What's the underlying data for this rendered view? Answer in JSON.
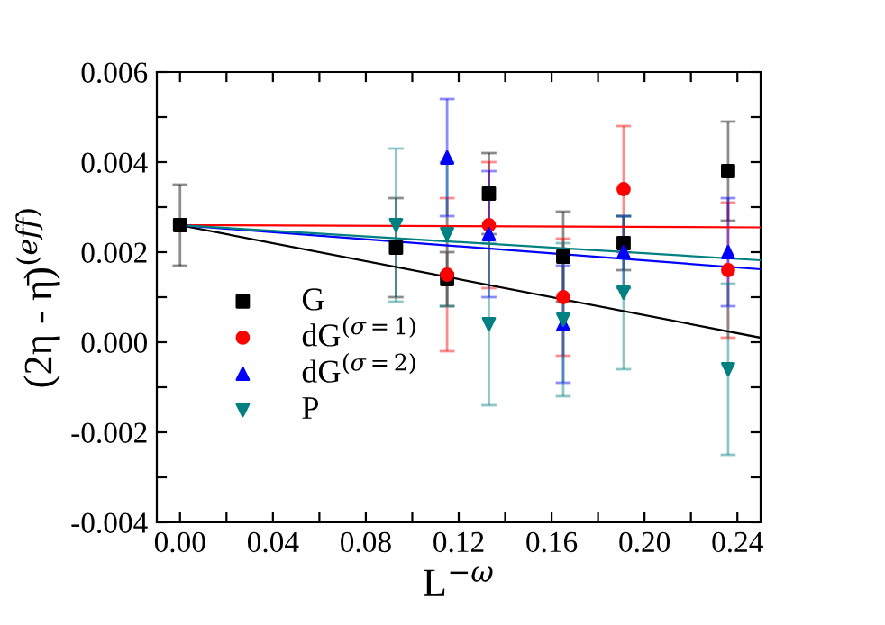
{
  "chart_data": {
    "type": "scatter",
    "xlabel": "L$^{−ω}$",
    "ylabel": "(2η - η̄)$^{(eff)}$",
    "xlim": [
      -0.01,
      0.25
    ],
    "ylim": [
      -0.004,
      0.006
    ],
    "xticks": [
      {
        "value": 0.0,
        "label": "0.00"
      },
      {
        "value": 0.02,
        "label": null
      },
      0.04,
      {
        "value": 0.06,
        "label": null
      },
      0.08,
      {
        "value": 0.1,
        "label": null
      },
      0.12,
      {
        "value": 0.14,
        "label": null
      },
      0.16,
      {
        "value": 0.18,
        "label": null
      },
      {
        "value": 0.2,
        "label": "0.20"
      },
      {
        "value": 0.22,
        "label": null
      },
      0.24
    ],
    "yticks": [
      {
        "value": -0.004,
        "label": "-0.004"
      },
      {
        "value": -0.003,
        "label": null
      },
      {
        "value": -0.002,
        "label": "-0.002"
      },
      {
        "value": -0.001,
        "label": null
      },
      {
        "value": 0.0,
        "label": "0.000"
      },
      {
        "value": 0.001,
        "label": null
      },
      {
        "value": 0.002,
        "label": "0.002"
      },
      {
        "value": 0.003,
        "label": null
      },
      {
        "value": 0.004,
        "label": "0.004"
      },
      {
        "value": 0.005,
        "label": null
      },
      {
        "value": 0.006,
        "label": "0.006"
      }
    ],
    "legend": "bottom left",
    "grid": false,
    "series": [
      {
        "name": "G",
        "color": "#000000",
        "marker": "square",
        "x": [
          0.0,
          0.093,
          0.115,
          0.133,
          0.165,
          0.191,
          0.236
        ],
        "values": [
          0.0026,
          0.0021,
          0.0014,
          0.0033,
          0.0019,
          0.0022,
          0.0038
        ],
        "errors": [
          0.0009,
          0.0011,
          0.0006,
          0.0009,
          0.001,
          0.0006,
          0.0011
        ]
      },
      {
        "name": "dG$^{(σ=1)}$",
        "color": "#ff0000",
        "marker": "circle",
        "x": [
          0.115,
          0.133,
          0.165,
          0.191,
          0.236
        ],
        "values": [
          0.0015,
          0.0026,
          0.001,
          0.0034,
          0.0016
        ],
        "errors": [
          0.0017,
          0.0014,
          0.0013,
          0.0014,
          0.0015
        ]
      },
      {
        "name": "dG$^{(σ=2)}$",
        "color": "#0000ff",
        "marker": "triangle",
        "x": [
          0.115,
          0.133,
          0.165,
          0.191,
          0.236
        ],
        "values": [
          0.0041,
          0.0024,
          0.0004,
          0.002,
          0.002
        ],
        "errors": [
          0.0013,
          0.0014,
          0.0013,
          0.0008,
          0.0012
        ]
      },
      {
        "name": "P",
        "color": "#008080",
        "marker": "triangle_down",
        "x": [
          0.093,
          0.115,
          0.133,
          0.165,
          0.191,
          0.236
        ],
        "values": [
          0.0026,
          0.0024,
          0.0004,
          0.0005,
          0.0011,
          -0.0006
        ],
        "errors": [
          0.0017,
          0.0016,
          0.0018,
          0.0017,
          0.0017,
          0.0019
        ]
      },
      {
        "type": "line",
        "color": "#000000",
        "x": [
          0.0,
          0.25
        ],
        "values": [
          0.0026,
          0.0001
        ]
      },
      {
        "type": "line",
        "color": "#ff0000",
        "x": [
          0.0,
          0.25
        ],
        "values": [
          0.0026,
          0.00255
        ]
      },
      {
        "type": "line",
        "color": "#0000ff",
        "x": [
          0.0,
          0.25
        ],
        "values": [
          0.0026,
          0.00162
        ]
      },
      {
        "type": "line",
        "color": "#008080",
        "x": [
          0.0,
          0.25
        ],
        "values": [
          0.0026,
          0.00182
        ]
      }
    ]
  }
}
